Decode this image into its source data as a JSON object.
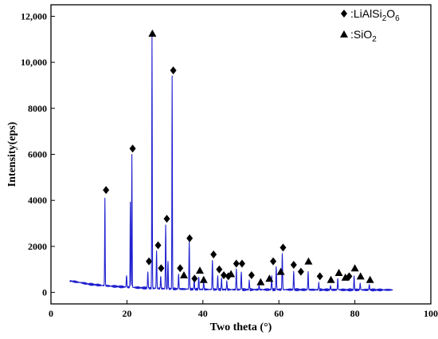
{
  "chart_data": {
    "type": "line",
    "xlabel": "Two theta (°)",
    "ylabel": "Intensity(eps)",
    "xlim": [
      0,
      100
    ],
    "ylim": [
      -500,
      12500
    ],
    "xticks": [
      0,
      20,
      40,
      60,
      80,
      100
    ],
    "xtick_labels": [
      "0",
      "20",
      "40",
      "60",
      "80",
      "100"
    ],
    "yticks": [
      0,
      2000,
      4000,
      6000,
      8000,
      10000,
      12000
    ],
    "ytick_labels": [
      "0",
      "2000",
      "4000",
      "6000",
      "8000",
      "10,000",
      "12,000"
    ],
    "grid": false,
    "legend_position": "top-right",
    "series": [
      {
        "color": "#1f1fd0",
        "baseline": [
          [
            5,
            500
          ],
          [
            8,
            420
          ],
          [
            10,
            360
          ],
          [
            13,
            310
          ],
          [
            16,
            270
          ],
          [
            20,
            230
          ],
          [
            25,
            190
          ],
          [
            30,
            160
          ],
          [
            40,
            130
          ],
          [
            50,
            120
          ],
          [
            60,
            120
          ],
          [
            70,
            115
          ],
          [
            80,
            110
          ],
          [
            90,
            110
          ]
        ],
        "peaks": [
          [
            14.2,
            4100
          ],
          [
            19.9,
            750
          ],
          [
            20.9,
            3900
          ],
          [
            21.3,
            6000
          ],
          [
            25.5,
            900
          ],
          [
            26.6,
            11100
          ],
          [
            27.8,
            1800
          ],
          [
            28.9,
            700
          ],
          [
            30.2,
            2900
          ],
          [
            30.8,
            1400
          ],
          [
            31.9,
            9400
          ],
          [
            33.6,
            800
          ],
          [
            36.4,
            2200
          ],
          [
            37.7,
            600
          ],
          [
            38.9,
            700
          ],
          [
            40.2,
            500
          ],
          [
            42.5,
            1400
          ],
          [
            43.9,
            700
          ],
          [
            44.9,
            600
          ],
          [
            46.3,
            500
          ],
          [
            48.8,
            1000
          ],
          [
            50.1,
            900
          ],
          [
            52.2,
            500
          ],
          [
            54.8,
            300
          ],
          [
            58.1,
            700
          ],
          [
            59.3,
            1100
          ],
          [
            60.9,
            1700
          ],
          [
            63.9,
            900
          ],
          [
            67.7,
            900
          ],
          [
            70.5,
            400
          ],
          [
            73.6,
            300
          ],
          [
            75.5,
            600
          ],
          [
            79.8,
            700
          ],
          [
            81.4,
            400
          ],
          [
            83.8,
            350
          ]
        ]
      }
    ],
    "legend": [
      {
        "marker": "diamond",
        "label": "LiAlSi",
        "sub1": "2",
        "mid": "O",
        "sub2": "6"
      },
      {
        "marker": "triangle",
        "label": "SiO",
        "sub1": "2"
      }
    ],
    "legend_prefix": ":",
    "annotations": {
      "diamond": [
        [
          14.5,
          4450
        ],
        [
          21.5,
          6250
        ],
        [
          25.8,
          1350
        ],
        [
          28.2,
          2050
        ],
        [
          29.0,
          1050
        ],
        [
          30.5,
          3200
        ],
        [
          32.2,
          9650
        ],
        [
          34.0,
          1050
        ],
        [
          36.5,
          2350
        ],
        [
          37.8,
          600
        ],
        [
          42.8,
          1650
        ],
        [
          44.3,
          1000
        ],
        [
          45.5,
          750
        ],
        [
          46.7,
          700
        ],
        [
          48.8,
          1250
        ],
        [
          50.3,
          1250
        ],
        [
          52.8,
          750
        ],
        [
          58.5,
          1350
        ],
        [
          61.1,
          1950
        ],
        [
          63.9,
          1200
        ],
        [
          65.8,
          900
        ],
        [
          70.8,
          700
        ],
        [
          78.5,
          700
        ]
      ],
      "triangle": [
        [
          26.7,
          11250
        ],
        [
          35.0,
          750
        ],
        [
          39.2,
          950
        ],
        [
          40.2,
          550
        ],
        [
          47.4,
          800
        ],
        [
          55.2,
          450
        ],
        [
          57.5,
          600
        ],
        [
          60.5,
          900
        ],
        [
          67.8,
          1350
        ],
        [
          73.7,
          550
        ],
        [
          75.8,
          850
        ],
        [
          77.5,
          650
        ],
        [
          80.0,
          1050
        ],
        [
          81.5,
          700
        ],
        [
          84.0,
          550
        ]
      ]
    }
  }
}
